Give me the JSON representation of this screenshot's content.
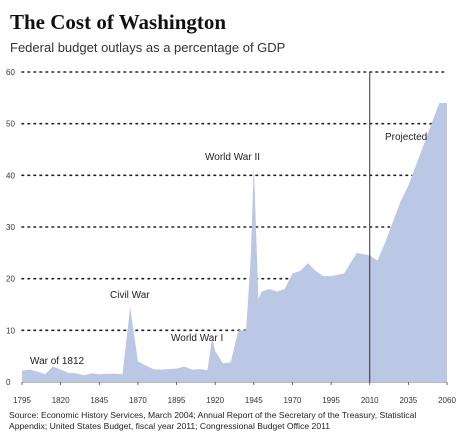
{
  "chart_data": {
    "type": "area",
    "title": "The Cost of Washington",
    "subtitle": "Federal budget outlays as a percentage of GDP",
    "x": [
      1795,
      1800,
      1805,
      1810,
      1815,
      1820,
      1825,
      1830,
      1835,
      1840,
      1845,
      1850,
      1855,
      1860,
      1865,
      1870,
      1875,
      1880,
      1885,
      1890,
      1895,
      1900,
      1905,
      1910,
      1915,
      1918,
      1920,
      1925,
      1930,
      1935,
      1940,
      1943,
      1945,
      1948,
      1950,
      1955,
      1960,
      1965,
      1970,
      1975,
      1980,
      1985,
      1990,
      1995,
      2000,
      2005,
      2010,
      2015,
      2020,
      2025,
      2030,
      2035,
      2040,
      2045,
      2050,
      2055,
      2060
    ],
    "values": [
      2.2,
      2.4,
      2.0,
      1.5,
      3.0,
      2.4,
      1.8,
      1.7,
      1.3,
      1.7,
      1.5,
      1.6,
      1.6,
      1.5,
      14.5,
      4.0,
      3.2,
      2.5,
      2.4,
      2.5,
      2.6,
      3.0,
      2.4,
      2.5,
      2.3,
      8.5,
      6.0,
      3.6,
      3.8,
      10.0,
      10.0,
      24.0,
      41.9,
      16.0,
      17.5,
      18.0,
      17.5,
      18.0,
      21.0,
      21.5,
      23.0,
      21.5,
      20.5,
      20.5,
      21.0,
      25.0,
      24.5,
      23.5,
      27.0,
      31.0,
      35.0,
      38.0,
      42.0,
      46.0,
      50.0,
      54.0,
      54.0
    ],
    "x_tick_labels": [
      "1795",
      "1820",
      "1845",
      "1870",
      "1895",
      "1920",
      "1945",
      "1970",
      "1995",
      "2010",
      "2035",
      "2060"
    ],
    "y_ticks": [
      "0",
      "10",
      "20",
      "30",
      "40",
      "50",
      "60"
    ],
    "ylim": [
      0,
      60
    ],
    "grid": "dotted horizontal",
    "projection_start": 2010,
    "annotations": [
      {
        "text": "War of 1812",
        "x": 1812
      },
      {
        "text": "Civil War",
        "x": 1865
      },
      {
        "text": "World War I",
        "x": 1918
      },
      {
        "text": "World War II",
        "x": 1945
      },
      {
        "text": "Projected",
        "x": 2030
      }
    ],
    "source": "Source: Economic History Services, March 2004; Annual Report of the Secretary of the Treasury, Statistical Appendix; United States Budget, fiscal year 2011; Congressional Budget Office 2011",
    "colors": {
      "area": "#bac8e5",
      "divider": "#333333",
      "grid": "#222222"
    }
  }
}
